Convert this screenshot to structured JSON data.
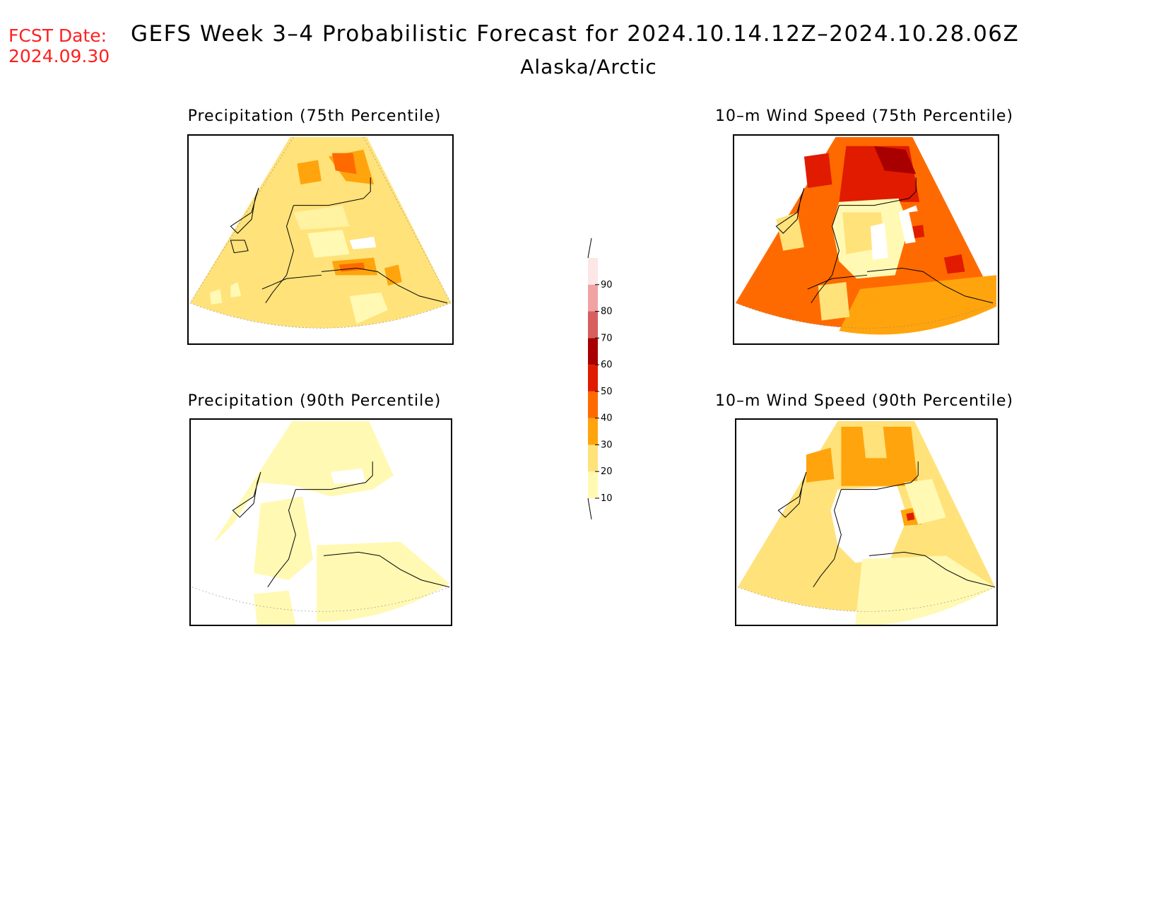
{
  "header": {
    "fcst_label": "FCST Date:",
    "fcst_date": "2024.09.30",
    "title": "GEFS Week 3–4 Probabilistic Forecast for 2024.10.14.12Z–2024.10.28.06Z",
    "region": "Alaska/Arctic"
  },
  "panels": [
    {
      "title": "Precipitation (75th Percentile)"
    },
    {
      "title": "10–m Wind Speed (75th Percentile)"
    },
    {
      "title": "Precipitation (90th Percentile)"
    },
    {
      "title": "10–m Wind Speed (90th Percentile)"
    }
  ],
  "legend": {
    "levels": [
      "10",
      "20",
      "30",
      "40",
      "50",
      "60",
      "70",
      "80",
      "90"
    ],
    "colors": [
      "#fff9b4",
      "#ffe27a",
      "#ffa40d",
      "#ff6a00",
      "#e01b00",
      "#a80000",
      "#d75f5f",
      "#f1a3a3",
      "#fde6e6"
    ]
  }
}
